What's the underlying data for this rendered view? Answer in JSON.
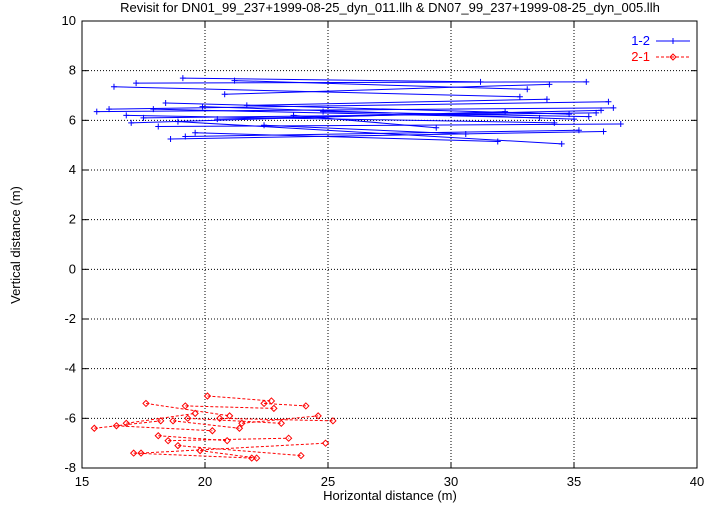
{
  "chart_data": {
    "type": "line",
    "title": "Revisit for DN01_99_237+1999-08-25_dyn_011.llh & DN07_99_237+1999-08-25_dyn_005.llh",
    "xlabel": "Horizontal distance (m)",
    "ylabel": "Vertical distance (m)",
    "xlim": [
      15,
      40
    ],
    "ylim": [
      -8,
      10
    ],
    "xticks": [
      "15",
      "20",
      "25",
      "30",
      "35",
      "40"
    ],
    "yticks": [
      "-8",
      "-6",
      "-4",
      "-2",
      "0",
      "2",
      "4",
      "6",
      "8",
      "10"
    ],
    "grid": true,
    "legend_position": "top-right",
    "series": [
      {
        "name": "1-2",
        "color": "#0000ff",
        "marker": "plus",
        "x": [
          15.6,
          36.6,
          17.2,
          35.5,
          16.8,
          34.2,
          18.1,
          36.9,
          17.9,
          33.6,
          19.2,
          35.2,
          16.3,
          32.8,
          20.5,
          36.1,
          18.4,
          34.8,
          19.6,
          31.9,
          17.5,
          35.9,
          21.2,
          33.1,
          18.9,
          34.5,
          16.1,
          36.4,
          22.4,
          30.6,
          19.9,
          35.0,
          17.0,
          32.2,
          20.8,
          34.0,
          23.6,
          29.4,
          18.6,
          36.2,
          21.7,
          33.9,
          19.1,
          31.2,
          24.8,
          35.6
        ],
        "y": [
          6.35,
          6.5,
          7.5,
          7.55,
          6.2,
          5.9,
          5.75,
          5.85,
          6.45,
          6.1,
          5.35,
          5.6,
          7.35,
          6.95,
          6.05,
          6.4,
          6.7,
          6.25,
          5.5,
          5.15,
          6.1,
          6.3,
          7.6,
          7.25,
          5.95,
          5.05,
          6.45,
          6.75,
          5.8,
          5.45,
          6.55,
          6.05,
          5.9,
          6.35,
          7.05,
          7.45,
          6.2,
          5.7,
          5.25,
          5.55,
          6.6,
          6.85,
          7.7,
          7.55,
          6.35,
          6.15
        ]
      },
      {
        "name": "2-1",
        "color": "#ff0000",
        "marker": "diamond",
        "x": [
          15.5,
          18.2,
          17.1,
          21.9,
          19.2,
          22.8,
          16.4,
          20.3,
          21.5,
          24.6,
          18.5,
          23.4,
          19.8,
          22.1,
          17.6,
          21.0,
          20.6,
          25.2,
          18.9,
          23.9,
          16.8,
          19.6,
          22.4,
          24.1,
          18.1,
          20.9,
          19.3,
          23.1,
          17.4,
          24.9,
          20.1,
          22.7,
          18.7,
          21.4
        ],
        "y": [
          -6.4,
          -6.1,
          -7.4,
          -7.6,
          -5.5,
          -5.6,
          -6.3,
          -6.5,
          -6.2,
          -5.9,
          -6.9,
          -6.8,
          -7.3,
          -7.6,
          -5.4,
          -5.9,
          -6.0,
          -6.1,
          -7.1,
          -7.5,
          -6.2,
          -5.8,
          -5.4,
          -5.5,
          -6.7,
          -6.9,
          -6.0,
          -6.2,
          -7.4,
          -7.0,
          -5.1,
          -5.3,
          -6.1,
          -6.4
        ]
      }
    ]
  }
}
